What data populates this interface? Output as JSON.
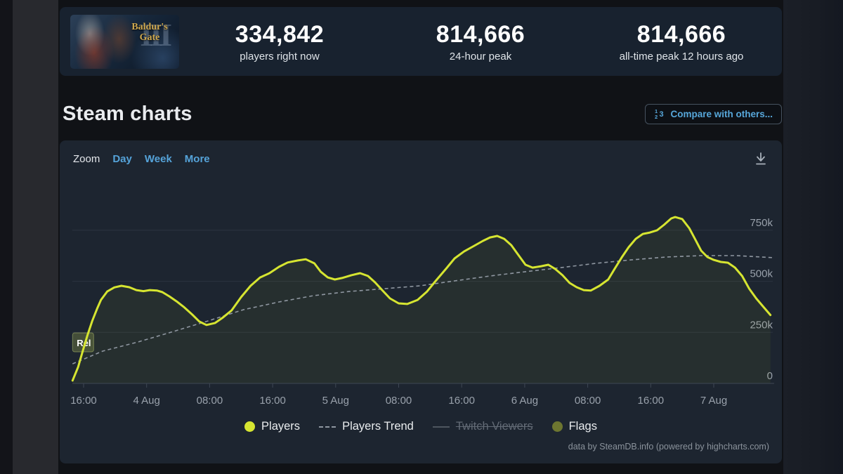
{
  "colors": {
    "players_line": "#d6e531",
    "players_fill": "rgba(214,229,49,0.05)",
    "trend_line": "#8f97a1",
    "flags_marker": "#6d7630",
    "flag_box_fill": "rgba(128,140,72,0.40)",
    "flag_box_stroke": "rgba(172,186,108,0.55)",
    "link_blue": "#57a7da",
    "grid_line": "#2c3441",
    "axis_line": "#3e4754",
    "axis_label": "#99a1ab"
  },
  "stats_panel": {
    "game": {
      "name_line1": "Baldur's",
      "name_line2": "Gate",
      "numeral": "III"
    },
    "stats": [
      {
        "value": "334,842",
        "label": "players right now"
      },
      {
        "value": "814,666",
        "label": "24-hour peak"
      },
      {
        "value": "814,666",
        "label": "all-time peak 12 hours ago"
      }
    ]
  },
  "section_header": {
    "title": "Steam charts",
    "compare_button_label": "Compare with others..."
  },
  "chart_controls": {
    "zoom_label": "Zoom",
    "range_day": "Day",
    "range_week": "Week",
    "range_more": "More"
  },
  "chart_data": {
    "type": "line",
    "title": "Steam charts",
    "x_axis": {
      "unit": "hours since 3 Aug 16:00",
      "ticks": [
        [
          0,
          "16:00"
        ],
        [
          8,
          "4 Aug"
        ],
        [
          16,
          "08:00"
        ],
        [
          24,
          "16:00"
        ],
        [
          32,
          "5 Aug"
        ],
        [
          40,
          "08:00"
        ],
        [
          48,
          "16:00"
        ],
        [
          56,
          "6 Aug"
        ],
        [
          64,
          "08:00"
        ],
        [
          72,
          "16:00"
        ],
        [
          80,
          "7 Aug"
        ]
      ]
    },
    "y_axis": {
      "unit": "players",
      "ticks": [
        [
          0,
          "0"
        ],
        [
          250000,
          "250k"
        ],
        [
          500000,
          "500k"
        ],
        [
          750000,
          "750k"
        ]
      ],
      "max": 860000
    },
    "grid": true,
    "legend_position": "bottom-center",
    "series": [
      {
        "name": "Players",
        "type": "line",
        "style": "solid",
        "color": "#d6e531",
        "points": [
          [
            -1.4,
            14000
          ],
          [
            -0.7,
            80000
          ],
          [
            -0.1,
            160000
          ],
          [
            0.5,
            237000
          ],
          [
            1.1,
            306000
          ],
          [
            1.7,
            365000
          ],
          [
            2.2,
            409000
          ],
          [
            3.0,
            450000
          ],
          [
            3.9,
            470000
          ],
          [
            4.8,
            478000
          ],
          [
            5.8,
            471000
          ],
          [
            6.7,
            457000
          ],
          [
            7.6,
            452000
          ],
          [
            8.4,
            457000
          ],
          [
            9.3,
            455000
          ],
          [
            10.0,
            447000
          ],
          [
            10.9,
            426000
          ],
          [
            11.8,
            402000
          ],
          [
            12.7,
            375000
          ],
          [
            13.8,
            337000
          ],
          [
            14.7,
            303000
          ],
          [
            15.6,
            286000
          ],
          [
            16.7,
            296000
          ],
          [
            17.6,
            320000
          ],
          [
            18.8,
            358000
          ],
          [
            20.0,
            423000
          ],
          [
            21.2,
            478000
          ],
          [
            22.4,
            519000
          ],
          [
            23.6,
            540000
          ],
          [
            24.8,
            571000
          ],
          [
            25.9,
            592000
          ],
          [
            27.2,
            602000
          ],
          [
            28.2,
            608000
          ],
          [
            29.3,
            588000
          ],
          [
            30.1,
            547000
          ],
          [
            31.0,
            519000
          ],
          [
            31.9,
            509000
          ],
          [
            32.8,
            516000
          ],
          [
            34.0,
            530000
          ],
          [
            35.1,
            540000
          ],
          [
            36.1,
            526000
          ],
          [
            37.0,
            495000
          ],
          [
            37.9,
            457000
          ],
          [
            38.9,
            416000
          ],
          [
            40.0,
            392000
          ],
          [
            41.1,
            389000
          ],
          [
            42.4,
            409000
          ],
          [
            43.6,
            450000
          ],
          [
            44.7,
            502000
          ],
          [
            46.0,
            561000
          ],
          [
            47.1,
            612000
          ],
          [
            48.3,
            646000
          ],
          [
            49.6,
            674000
          ],
          [
            50.7,
            698000
          ],
          [
            51.6,
            715000
          ],
          [
            52.5,
            722000
          ],
          [
            53.4,
            708000
          ],
          [
            54.3,
            677000
          ],
          [
            55.2,
            629000
          ],
          [
            56.1,
            581000
          ],
          [
            57.0,
            567000
          ],
          [
            58.1,
            574000
          ],
          [
            59.0,
            581000
          ],
          [
            59.9,
            560000
          ],
          [
            60.8,
            530000
          ],
          [
            61.7,
            492000
          ],
          [
            62.6,
            471000
          ],
          [
            63.5,
            457000
          ],
          [
            64.4,
            455000
          ],
          [
            65.5,
            478000
          ],
          [
            66.6,
            509000
          ],
          [
            67.4,
            560000
          ],
          [
            68.3,
            616000
          ],
          [
            69.2,
            667000
          ],
          [
            70.1,
            708000
          ],
          [
            71.0,
            732000
          ],
          [
            71.9,
            739000
          ],
          [
            72.8,
            750000
          ],
          [
            73.7,
            777000
          ],
          [
            74.6,
            808000
          ],
          [
            75.1,
            814666
          ],
          [
            76.0,
            805000
          ],
          [
            76.9,
            760000
          ],
          [
            77.7,
            702000
          ],
          [
            78.4,
            650000
          ],
          [
            79.2,
            619000
          ],
          [
            80.0,
            605000
          ],
          [
            80.9,
            595000
          ],
          [
            81.8,
            591000
          ],
          [
            82.7,
            567000
          ],
          [
            83.6,
            526000
          ],
          [
            84.5,
            464000
          ],
          [
            85.4,
            416000
          ],
          [
            86.3,
            375000
          ],
          [
            87.2,
            334842
          ]
        ]
      },
      {
        "name": "Players Trend",
        "type": "line",
        "style": "dashed",
        "color": "#8f97a1",
        "points": [
          [
            -1.4,
            96000
          ],
          [
            2.4,
            158000
          ],
          [
            6.9,
            203000
          ],
          [
            11.4,
            254000
          ],
          [
            15.8,
            306000
          ],
          [
            20.3,
            361000
          ],
          [
            24.8,
            399000
          ],
          [
            29.2,
            430000
          ],
          [
            33.7,
            450000
          ],
          [
            38.2,
            464000
          ],
          [
            42.7,
            478000
          ],
          [
            47.1,
            502000
          ],
          [
            51.6,
            526000
          ],
          [
            56.1,
            547000
          ],
          [
            60.6,
            567000
          ],
          [
            65.0,
            588000
          ],
          [
            69.5,
            605000
          ],
          [
            74.0,
            619000
          ],
          [
            78.4,
            626000
          ],
          [
            82.9,
            626000
          ],
          [
            87.5,
            616000
          ]
        ]
      },
      {
        "name": "Twitch Viewers",
        "type": "line",
        "disabled": true,
        "color": "#4e565f",
        "points": []
      },
      {
        "name": "Flags",
        "type": "flags",
        "color": "#6d7630",
        "points": [
          {
            "t": -1.4,
            "label": "Rel"
          }
        ]
      }
    ],
    "credits": "data by SteamDB.info (powered by highcharts.com)"
  }
}
